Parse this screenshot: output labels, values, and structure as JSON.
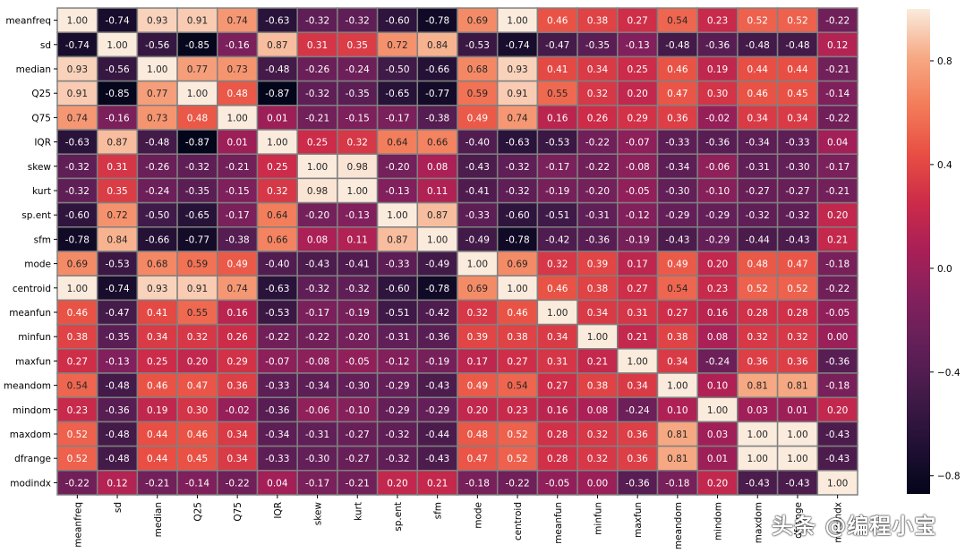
{
  "chart_data": {
    "type": "heatmap",
    "labels": [
      "meanfreq",
      "sd",
      "median",
      "Q25",
      "Q75",
      "IQR",
      "skew",
      "kurt",
      "sp.ent",
      "sfm",
      "mode",
      "centroid",
      "meanfun",
      "minfun",
      "maxfun",
      "meandom",
      "mindom",
      "maxdom",
      "dfrange",
      "modindx"
    ],
    "values": [
      [
        1.0,
        -0.74,
        0.93,
        0.91,
        0.74,
        -0.63,
        -0.32,
        -0.32,
        -0.6,
        -0.78,
        0.69,
        1.0,
        0.46,
        0.38,
        0.27,
        0.54,
        0.23,
        0.52,
        0.52,
        -0.22
      ],
      [
        -0.74,
        1.0,
        -0.56,
        -0.85,
        -0.16,
        0.87,
        0.31,
        0.35,
        0.72,
        0.84,
        -0.53,
        -0.74,
        -0.47,
        -0.35,
        -0.13,
        -0.48,
        -0.36,
        -0.48,
        -0.48,
        0.12
      ],
      [
        0.93,
        -0.56,
        1.0,
        0.77,
        0.73,
        -0.48,
        -0.26,
        -0.24,
        -0.5,
        -0.66,
        0.68,
        0.93,
        0.41,
        0.34,
        0.25,
        0.46,
        0.19,
        0.44,
        0.44,
        -0.21
      ],
      [
        0.91,
        -0.85,
        0.77,
        1.0,
        0.48,
        -0.87,
        -0.32,
        -0.35,
        -0.65,
        -0.77,
        0.59,
        0.91,
        0.55,
        0.32,
        0.2,
        0.47,
        0.3,
        0.46,
        0.45,
        -0.14
      ],
      [
        0.74,
        -0.16,
        0.73,
        0.48,
        1.0,
        0.01,
        -0.21,
        -0.15,
        -0.17,
        -0.38,
        0.49,
        0.74,
        0.16,
        0.26,
        0.29,
        0.36,
        -0.02,
        0.34,
        0.34,
        -0.22
      ],
      [
        -0.63,
        0.87,
        -0.48,
        -0.87,
        0.01,
        1.0,
        0.25,
        0.32,
        0.64,
        0.66,
        -0.4,
        -0.63,
        -0.53,
        -0.22,
        -0.07,
        -0.33,
        -0.36,
        -0.34,
        -0.33,
        0.04
      ],
      [
        -0.32,
        0.31,
        -0.26,
        -0.32,
        -0.21,
        0.25,
        1.0,
        0.98,
        -0.2,
        0.08,
        -0.43,
        -0.32,
        -0.17,
        -0.22,
        -0.08,
        -0.34,
        -0.06,
        -0.31,
        -0.3,
        -0.17
      ],
      [
        -0.32,
        0.35,
        -0.24,
        -0.35,
        -0.15,
        0.32,
        0.98,
        1.0,
        -0.13,
        0.11,
        -0.41,
        -0.32,
        -0.19,
        -0.2,
        -0.05,
        -0.3,
        -0.1,
        -0.27,
        -0.27,
        -0.21
      ],
      [
        -0.6,
        0.72,
        -0.5,
        -0.65,
        -0.17,
        0.64,
        -0.2,
        -0.13,
        1.0,
        0.87,
        -0.33,
        -0.6,
        -0.51,
        -0.31,
        -0.12,
        -0.29,
        -0.29,
        -0.32,
        -0.32,
        0.2
      ],
      [
        -0.78,
        0.84,
        -0.66,
        -0.77,
        -0.38,
        0.66,
        0.08,
        0.11,
        0.87,
        1.0,
        -0.49,
        -0.78,
        -0.42,
        -0.36,
        -0.19,
        -0.43,
        -0.29,
        -0.44,
        -0.43,
        0.21
      ],
      [
        0.69,
        -0.53,
        0.68,
        0.59,
        0.49,
        -0.4,
        -0.43,
        -0.41,
        -0.33,
        -0.49,
        1.0,
        0.69,
        0.32,
        0.39,
        0.17,
        0.49,
        0.2,
        0.48,
        0.47,
        -0.18
      ],
      [
        1.0,
        -0.74,
        0.93,
        0.91,
        0.74,
        -0.63,
        -0.32,
        -0.32,
        -0.6,
        -0.78,
        0.69,
        1.0,
        0.46,
        0.38,
        0.27,
        0.54,
        0.23,
        0.52,
        0.52,
        -0.22
      ],
      [
        0.46,
        -0.47,
        0.41,
        0.55,
        0.16,
        -0.53,
        -0.17,
        -0.19,
        -0.51,
        -0.42,
        0.32,
        0.46,
        1.0,
        0.34,
        0.31,
        0.27,
        0.16,
        0.28,
        0.28,
        -0.05
      ],
      [
        0.38,
        -0.35,
        0.34,
        0.32,
        0.26,
        -0.22,
        -0.22,
        -0.2,
        -0.31,
        -0.36,
        0.39,
        0.38,
        0.34,
        1.0,
        0.21,
        0.38,
        0.08,
        0.32,
        0.32,
        0.0
      ],
      [
        0.27,
        -0.13,
        0.25,
        0.2,
        0.29,
        -0.07,
        -0.08,
        -0.05,
        -0.12,
        -0.19,
        0.17,
        0.27,
        0.31,
        0.21,
        1.0,
        0.34,
        -0.24,
        0.36,
        0.36,
        -0.36
      ],
      [
        0.54,
        -0.48,
        0.46,
        0.47,
        0.36,
        -0.33,
        -0.34,
        -0.3,
        -0.29,
        -0.43,
        0.49,
        0.54,
        0.27,
        0.38,
        0.34,
        1.0,
        0.1,
        0.81,
        0.81,
        -0.18
      ],
      [
        0.23,
        -0.36,
        0.19,
        0.3,
        -0.02,
        -0.36,
        -0.06,
        -0.1,
        -0.29,
        -0.29,
        0.2,
        0.23,
        0.16,
        0.08,
        -0.24,
        0.1,
        1.0,
        0.03,
        0.01,
        0.2
      ],
      [
        0.52,
        -0.48,
        0.44,
        0.46,
        0.34,
        -0.34,
        -0.31,
        -0.27,
        -0.32,
        -0.44,
        0.48,
        0.52,
        0.28,
        0.32,
        0.36,
        0.81,
        0.03,
        1.0,
        1.0,
        -0.43
      ],
      [
        0.52,
        -0.48,
        0.44,
        0.45,
        0.34,
        -0.33,
        -0.3,
        -0.27,
        -0.32,
        -0.43,
        0.47,
        0.52,
        0.28,
        0.32,
        0.36,
        0.81,
        0.01,
        1.0,
        1.0,
        -0.43
      ],
      [
        -0.22,
        0.12,
        -0.21,
        -0.14,
        -0.22,
        0.04,
        -0.17,
        -0.21,
        0.2,
        0.21,
        -0.18,
        -0.22,
        -0.05,
        0.0,
        -0.36,
        -0.18,
        0.2,
        -0.43,
        -0.43,
        1.0
      ]
    ],
    "colorbar": {
      "min": -0.87,
      "max": 1.0,
      "ticks": [
        0.8,
        0.4,
        0.0,
        -0.4,
        -0.8
      ],
      "tick_labels": [
        "0.8",
        "0.4",
        "0.0",
        "−0.4",
        "−0.8"
      ]
    },
    "colormap": "rocket",
    "title": "",
    "xlabel": "",
    "ylabel": ""
  },
  "watermark": "头条 @编程小宝"
}
